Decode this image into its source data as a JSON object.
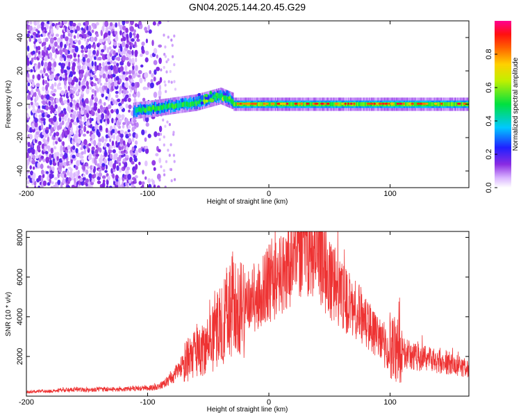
{
  "title": "GN04.2025.144.20.45.G29",
  "chart_data": [
    {
      "type": "heatmap",
      "xlabel": "Height of straight line (km)",
      "ylabel": "Frequency (Hz)",
      "xlim": [
        -200,
        165
      ],
      "ylim": [
        -50,
        50
      ],
      "xticks": [
        -200,
        -100,
        0,
        100
      ],
      "yticks": [
        -40,
        -20,
        0,
        20,
        40
      ],
      "colorbar": {
        "label": "Normalized spectral amplitude",
        "range": [
          0,
          1
        ],
        "ticks": [
          0.0,
          0.2,
          0.4,
          0.6,
          0.8
        ],
        "tick_labels": [
          "0.0",
          "0.2",
          "0.4",
          "0.6",
          "0.8"
        ],
        "colormap": "rainbow (white → purple → blue → cyan → green → yellow → orange → red → magenta)"
      },
      "regions": [
        {
          "x_range": [
            -200,
            -90
          ],
          "frequency_range": [
            -50,
            50
          ],
          "amplitude": "0.1–0.3 (scattered noise)"
        },
        {
          "x_range": [
            -112,
            -30
          ],
          "frequency_center_trend": [
            [
              -112,
              -4
            ],
            [
              -90,
              -2
            ],
            [
              -60,
              1
            ],
            [
              -40,
              5
            ],
            [
              -30,
              2
            ]
          ],
          "amplitude": "0.4–0.8"
        },
        {
          "x_range": [
            -30,
            165
          ],
          "frequency_center": 0,
          "amplitude": "0.6–0.95 (strong line near 0 Hz)"
        }
      ]
    },
    {
      "type": "line",
      "xlabel": "Height of straight line (km)",
      "ylabel": "SNR (10 * v/v)",
      "xlim": [
        -200,
        165
      ],
      "ylim": [
        0,
        8300
      ],
      "xticks": [
        -200,
        -100,
        0,
        100
      ],
      "yticks": [
        2000,
        4000,
        6000,
        8000
      ],
      "series": [
        {
          "color": "#ee3333",
          "points": [
            [
              -200,
              200
            ],
            [
              -190,
              250
            ],
            [
              -180,
              250
            ],
            [
              -170,
              300
            ],
            [
              -160,
              350
            ],
            [
              -150,
              300
            ],
            [
              -140,
              350
            ],
            [
              -130,
              350
            ],
            [
              -120,
              350
            ],
            [
              -110,
              400
            ],
            [
              -100,
              400
            ],
            [
              -92,
              450
            ],
            [
              -85,
              700
            ],
            [
              -80,
              900
            ],
            [
              -75,
              1300
            ],
            [
              -70,
              1700
            ],
            [
              -65,
              1900
            ],
            [
              -60,
              2200
            ],
            [
              -55,
              2300
            ],
            [
              -50,
              2500
            ],
            [
              -45,
              3000
            ],
            [
              -40,
              3600
            ],
            [
              -35,
              4200
            ],
            [
              -30,
              4600
            ],
            [
              -25,
              4500
            ],
            [
              -20,
              4600
            ],
            [
              -15,
              4900
            ],
            [
              -10,
              5000
            ],
            [
              -5,
              5400
            ],
            [
              0,
              5700
            ],
            [
              5,
              5800
            ],
            [
              10,
              6100
            ],
            [
              15,
              6800
            ],
            [
              20,
              7000
            ],
            [
              25,
              7500
            ],
            [
              30,
              7700
            ],
            [
              35,
              7700
            ],
            [
              40,
              7200
            ],
            [
              45,
              6600
            ],
            [
              50,
              6000
            ],
            [
              55,
              5500
            ],
            [
              60,
              5100
            ],
            [
              65,
              4700
            ],
            [
              70,
              4500
            ],
            [
              75,
              4200
            ],
            [
              80,
              3800
            ],
            [
              85,
              3300
            ],
            [
              90,
              3000
            ],
            [
              95,
              2800
            ],
            [
              100,
              2500
            ],
            [
              105,
              2300
            ],
            [
              110,
              2200
            ],
            [
              115,
              2100
            ],
            [
              120,
              2000
            ],
            [
              130,
              1900
            ],
            [
              140,
              1750
            ],
            [
              150,
              1650
            ],
            [
              160,
              1450
            ],
            [
              165,
              1350
            ]
          ]
        }
      ]
    }
  ]
}
